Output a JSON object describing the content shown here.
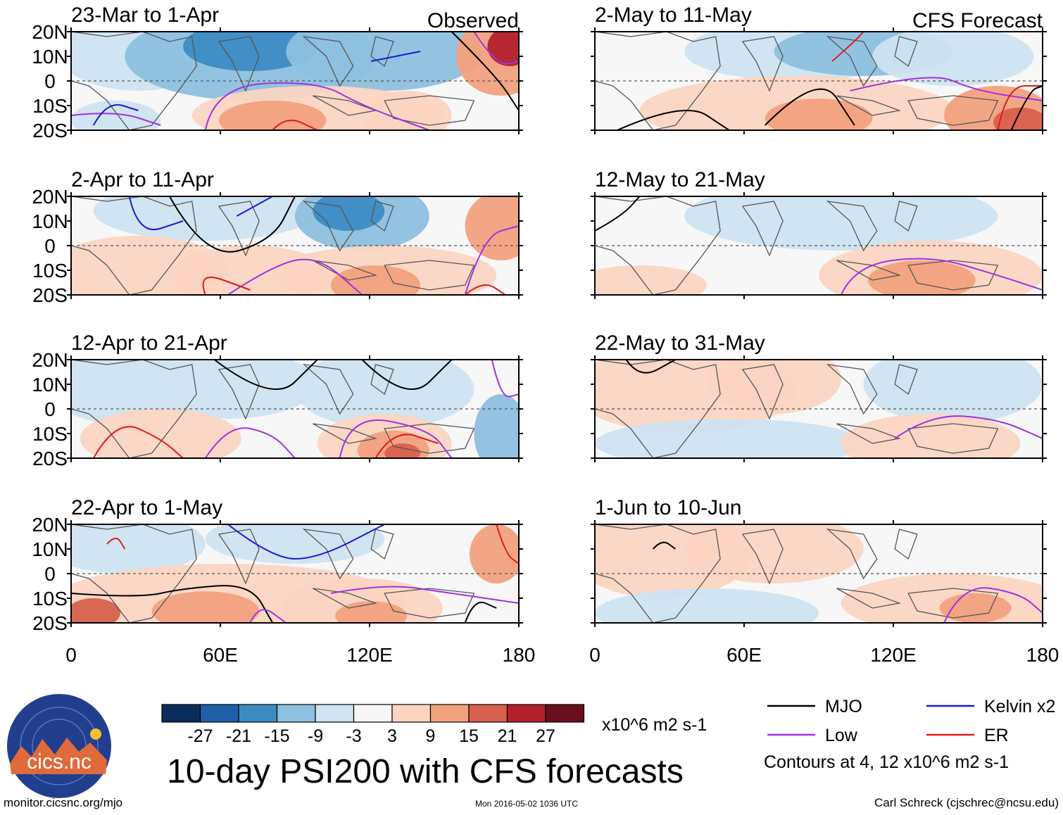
{
  "chart_data": {
    "type": "heatmap",
    "title": "10-day PSI200 with CFS forecasts",
    "variable": "PSI200",
    "units": "x10^6 m2 s-1",
    "columns": [
      {
        "label": "Observed",
        "panels": [
          "23-Mar to 1-Apr",
          "2-Apr to 11-Apr",
          "12-Apr to 21-Apr",
          "22-Apr to 1-May"
        ]
      },
      {
        "label": "CFS Forecast",
        "panels": [
          "2-May to 11-May",
          "12-May to 21-May",
          "22-May to 31-May",
          "1-Jun to 10-Jun"
        ]
      }
    ],
    "x_ticks": [
      "0",
      "60E",
      "120E",
      "180"
    ],
    "x_range": [
      0,
      180
    ],
    "y_ticks": [
      "20N",
      "10N",
      "0",
      "10S",
      "20S"
    ],
    "y_range": [
      -20,
      20
    ],
    "colorbar": {
      "ticks": [
        "-27",
        "-21",
        "-15",
        "-9",
        "-3",
        "3",
        "9",
        "15",
        "21",
        "27"
      ],
      "colors": [
        "#0b2d5b",
        "#1f5fa8",
        "#3c8cc4",
        "#8dc0de",
        "#cfe3f0",
        "#f7f7f7",
        "#fbd5c2",
        "#f2a17f",
        "#d8604e",
        "#b3202e",
        "#6a0d1d"
      ]
    },
    "legend": [
      {
        "label": "MJO",
        "color": "#000000"
      },
      {
        "label": "Kelvin x2",
        "color": "#1a1ad6"
      },
      {
        "label": "Low",
        "color": "#a033e0"
      },
      {
        "label": "ER",
        "color": "#e01a1a"
      }
    ],
    "contour_note": "Contours at 4, 12 x10^6 m2 s-1"
  },
  "logo_text": "cics.nc",
  "footer": {
    "left": "monitor.cicsnc.org/mjo",
    "center": "Mon 2016-05-02 1036 UTC",
    "right": "Carl Schreck (cjschrec@ncsu.edu)"
  }
}
